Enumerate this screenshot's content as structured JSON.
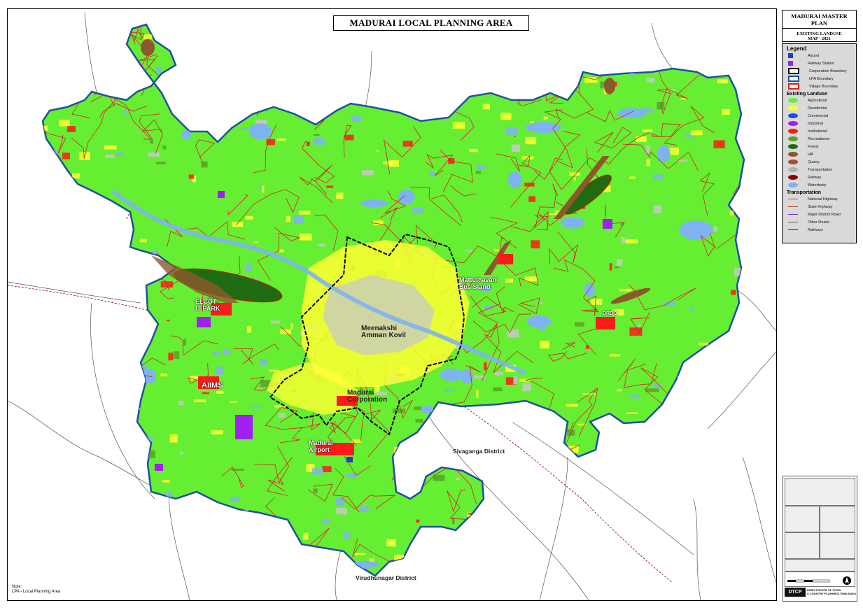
{
  "map": {
    "title": "MADURAI LOCAL PLANNING AREA",
    "places": {
      "meenakshi": "Meenakshi\nAmman Kovil",
      "mattuthavani": "Mattuthavani\nBus Stand",
      "elcot": "ELCOT\nIT PARK",
      "aiims": "AIIMS",
      "corporation": "Madurai\nCorporation",
      "airport": "Madurai\nAirport",
      "drdo": "DRDO"
    },
    "districts": {
      "sivaganga": "Sivaganga District",
      "virudhunagar": "Virudhunagar District"
    },
    "note": {
      "heading": "Note:",
      "text": "LPA - Local Planning Area"
    }
  },
  "panel": {
    "header": {
      "title": "MADURAI MASTER PLAN",
      "subtitle": "EXISTING LANDUSE",
      "map_year": "MAP - 2021"
    },
    "legend": {
      "title": "Legend",
      "symbols": [
        {
          "label": "Airport",
          "color": "#1f3fbf"
        },
        {
          "label": "Railway Station",
          "color": "#8a2be2"
        },
        {
          "label": "Corporation Boundary",
          "color": "#000000"
        },
        {
          "label": "LPA Boundary",
          "color": "#1f4fa0"
        },
        {
          "label": "Village Boundary",
          "color": "#d92020"
        }
      ],
      "landuse_title": "Existing Landuse",
      "landuse": [
        {
          "label": "Agricultural",
          "color": "#66ee33"
        },
        {
          "label": "Residential",
          "color": "#ffff33"
        },
        {
          "label": "Commercial",
          "color": "#1f4fd8"
        },
        {
          "label": "Industrial",
          "color": "#a020f0"
        },
        {
          "label": "Institutional",
          "color": "#ff1a1a"
        },
        {
          "label": "Recreational",
          "color": "#5aa02c"
        },
        {
          "label": "Forest",
          "color": "#1f6b12"
        },
        {
          "label": "Hill",
          "color": "#8b5a2b"
        },
        {
          "label": "Quarry",
          "color": "#a0522d"
        },
        {
          "label": "Transportation",
          "color": "#b0b0b0"
        },
        {
          "label": "Railway",
          "color": "#8b0000"
        },
        {
          "label": "Waterbody",
          "color": "#7fb2f0"
        }
      ],
      "transport_title": "Transportation",
      "transport": [
        {
          "label": "National Highway",
          "color": "#c0392b"
        },
        {
          "label": "State Highway",
          "color": "#c0392b"
        },
        {
          "label": "Major District Road",
          "color": "#7b2fbf"
        },
        {
          "label": "Other Roads",
          "color": "#555555"
        },
        {
          "label": "Railways",
          "color": "#8b0000"
        }
      ]
    },
    "titleblock": {
      "dtcp": "DTCP",
      "dtcp_text": "DIRECTORATE OF TOWN\n& COUNTRY PLANNING-TAMILNADU"
    }
  }
}
